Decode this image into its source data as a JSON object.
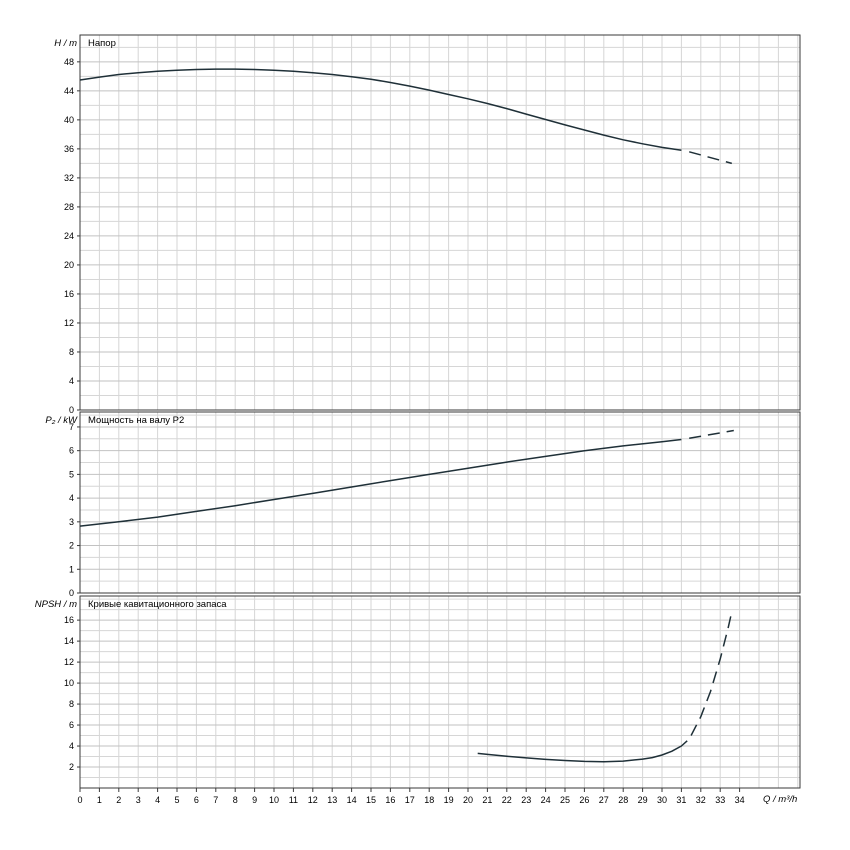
{
  "figure": {
    "background": "#ffffff",
    "curve_color": "#1f3038",
    "grid_minor_color": "#d6d6d6",
    "grid_major_color": "#c2c2c2",
    "border_color": "#3a3a3a",
    "text_color": "#000000"
  },
  "xaxis": {
    "label": "Q / m³/h",
    "min": 0,
    "max": 37.1,
    "tick_step": 1,
    "ticks": [
      0,
      1,
      2,
      3,
      4,
      5,
      6,
      7,
      8,
      9,
      10,
      11,
      12,
      13,
      14,
      15,
      16,
      17,
      18,
      19,
      20,
      21,
      22,
      23,
      24,
      25,
      26,
      27,
      28,
      29,
      30,
      31,
      32,
      33,
      34
    ]
  },
  "chart_data": [
    {
      "type": "line",
      "id": "head",
      "title": "Напор",
      "ylabel": "H / m",
      "ylim": [
        0,
        51.7
      ],
      "yticks": [
        0,
        4,
        8,
        12,
        16,
        20,
        24,
        28,
        32,
        36,
        40,
        44,
        48
      ],
      "ygrid_step": 2,
      "legend": "none",
      "grid": "on",
      "series": [
        {
          "name": "head-curve",
          "style": "solid",
          "points": [
            [
              0,
              45.5
            ],
            [
              1,
              45.9
            ],
            [
              2,
              46.25
            ],
            [
              3,
              46.5
            ],
            [
              4,
              46.7
            ],
            [
              5,
              46.85
            ],
            [
              6,
              46.95
            ],
            [
              7,
              47.0
            ],
            [
              8,
              47.0
            ],
            [
              9,
              46.95
            ],
            [
              10,
              46.85
            ],
            [
              11,
              46.7
            ],
            [
              12,
              46.5
            ],
            [
              13,
              46.25
            ],
            [
              14,
              45.95
            ],
            [
              15,
              45.6
            ],
            [
              16,
              45.15
            ],
            [
              17,
              44.65
            ],
            [
              18,
              44.1
            ],
            [
              19,
              43.5
            ],
            [
              20,
              42.9
            ],
            [
              21,
              42.25
            ],
            [
              22,
              41.55
            ],
            [
              23,
              40.8
            ],
            [
              24,
              40.05
            ],
            [
              25,
              39.3
            ],
            [
              26,
              38.6
            ],
            [
              27,
              37.9
            ],
            [
              28,
              37.25
            ],
            [
              29,
              36.7
            ],
            [
              30,
              36.2
            ],
            [
              31,
              35.8
            ]
          ]
        },
        {
          "name": "head-curve-extrapolated",
          "style": "dashed",
          "points": [
            [
              31.4,
              35.6
            ],
            [
              33.6,
              34.0
            ]
          ]
        }
      ]
    },
    {
      "type": "line",
      "id": "power",
      "title": "Мощность на валу P2",
      "ylabel": "P₂ / kW",
      "ylim": [
        0,
        7.63
      ],
      "yticks": [
        0,
        1,
        2,
        3,
        4,
        5,
        6,
        7
      ],
      "ygrid_step": 0.5,
      "legend": "none",
      "grid": "on",
      "series": [
        {
          "name": "shaft-power-curve",
          "style": "solid",
          "points": [
            [
              0,
              2.82
            ],
            [
              2,
              3.0
            ],
            [
              4,
              3.2
            ],
            [
              6,
              3.44
            ],
            [
              8,
              3.68
            ],
            [
              10,
              3.94
            ],
            [
              12,
              4.2
            ],
            [
              14,
              4.47
            ],
            [
              16,
              4.74
            ],
            [
              18,
              5.0
            ],
            [
              20,
              5.26
            ],
            [
              22,
              5.52
            ],
            [
              24,
              5.76
            ],
            [
              26,
              6.0
            ],
            [
              28,
              6.2
            ],
            [
              30,
              6.38
            ],
            [
              31,
              6.47
            ]
          ]
        },
        {
          "name": "shaft-power-curve-extrapolated",
          "style": "dashed",
          "points": [
            [
              31.4,
              6.52
            ],
            [
              33.7,
              6.85
            ]
          ]
        }
      ]
    },
    {
      "type": "line",
      "id": "npsh",
      "title": "Кривые кавитационного запаса",
      "ylabel": "NPSH / m",
      "ylim": [
        0,
        18.3
      ],
      "yticks": [
        2,
        4,
        6,
        8,
        10,
        12,
        14,
        16
      ],
      "ygrid_step": 1,
      "legend": "none",
      "grid": "on",
      "series": [
        {
          "name": "npsh-curve",
          "style": "solid",
          "points": [
            [
              20.5,
              3.3
            ],
            [
              21,
              3.2
            ],
            [
              22,
              3.02
            ],
            [
              23,
              2.87
            ],
            [
              24,
              2.73
            ],
            [
              25,
              2.62
            ],
            [
              26,
              2.54
            ],
            [
              27,
              2.5
            ],
            [
              28,
              2.56
            ],
            [
              29,
              2.75
            ],
            [
              29.5,
              2.9
            ],
            [
              30,
              3.15
            ],
            [
              30.5,
              3.5
            ],
            [
              31,
              4.0
            ],
            [
              31.3,
              4.5
            ]
          ]
        },
        {
          "name": "npsh-curve-extrapolated",
          "style": "dashed",
          "points": [
            [
              31.5,
              5.0
            ],
            [
              32,
              6.8
            ],
            [
              32.5,
              9.2
            ],
            [
              33,
              12.3
            ],
            [
              33.4,
              15.2
            ],
            [
              33.6,
              16.8
            ]
          ]
        }
      ]
    }
  ]
}
